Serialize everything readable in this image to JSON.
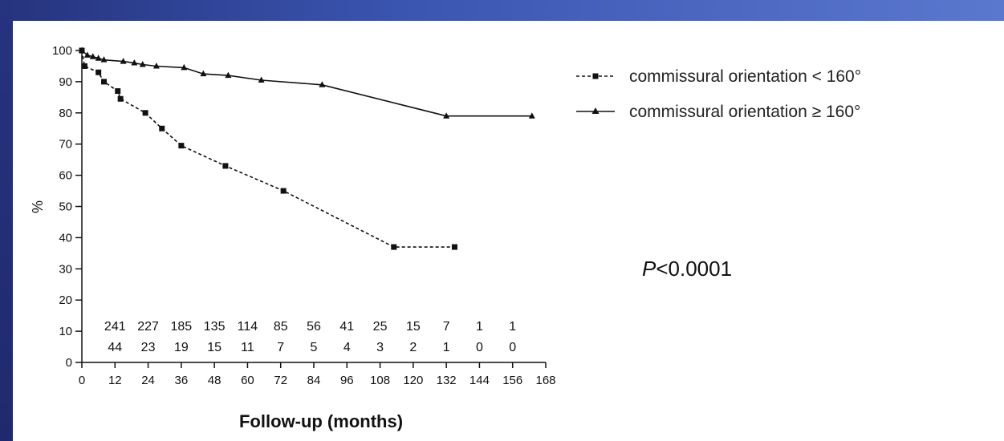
{
  "chart_data": {
    "type": "line",
    "title": "",
    "xlabel": "Follow-up (months)",
    "ylabel": "%",
    "xlim": [
      0,
      168
    ],
    "ylim": [
      0,
      100
    ],
    "x_ticks": [
      "0",
      "12",
      "24",
      "36",
      "48",
      "60",
      "72",
      "84",
      "96",
      "108",
      "120",
      "132",
      "144",
      "156",
      "168"
    ],
    "y_ticks": [
      "0",
      "10",
      "20",
      "30",
      "40",
      "50",
      "60",
      "70",
      "80",
      "90",
      "100"
    ],
    "series": [
      {
        "name": "commissural orientation < 160°",
        "legend_prefix": "commissural orientation ",
        "legend_symbol": "<",
        "legend_suffix": " 160°",
        "style": "dashed",
        "marker": "square",
        "color": "#111111",
        "x": [
          0,
          1,
          6,
          8,
          13,
          14,
          23,
          29,
          36,
          52,
          73,
          113,
          135
        ],
        "y": [
          100,
          95,
          93,
          90,
          87,
          84.5,
          80,
          75,
          69.5,
          63,
          55,
          37,
          37
        ]
      },
      {
        "name": "commissural orientation ≥ 160°",
        "legend_prefix": "commissural orientation ",
        "legend_symbol": "≥",
        "legend_suffix": " 160°",
        "style": "solid",
        "marker": "triangle",
        "color": "#111111",
        "x": [
          0,
          2,
          4,
          6,
          8,
          15,
          19,
          22,
          27,
          37,
          44,
          53,
          65,
          87,
          132,
          163
        ],
        "y": [
          100,
          98.5,
          98,
          97.5,
          97,
          96.5,
          96,
          95.5,
          95,
          94.5,
          92.5,
          92,
          90.5,
          89,
          79,
          79
        ]
      }
    ],
    "at_risk": {
      "x": [
        12,
        24,
        36,
        48,
        60,
        72,
        84,
        96,
        108,
        120,
        132,
        144,
        156
      ],
      "row1": [
        "241",
        "227",
        "185",
        "135",
        "114",
        "85",
        "56",
        "41",
        "25",
        "15",
        "7",
        "1",
        "1"
      ],
      "row2": [
        "44",
        "23",
        "19",
        "15",
        "11",
        "7",
        "5",
        "4",
        "3",
        "2",
        "1",
        "0",
        "0"
      ]
    },
    "annotation": {
      "p_prefix": "P",
      "p_rest": "<0.0001"
    },
    "grid": false,
    "legend_position": "top-right"
  }
}
